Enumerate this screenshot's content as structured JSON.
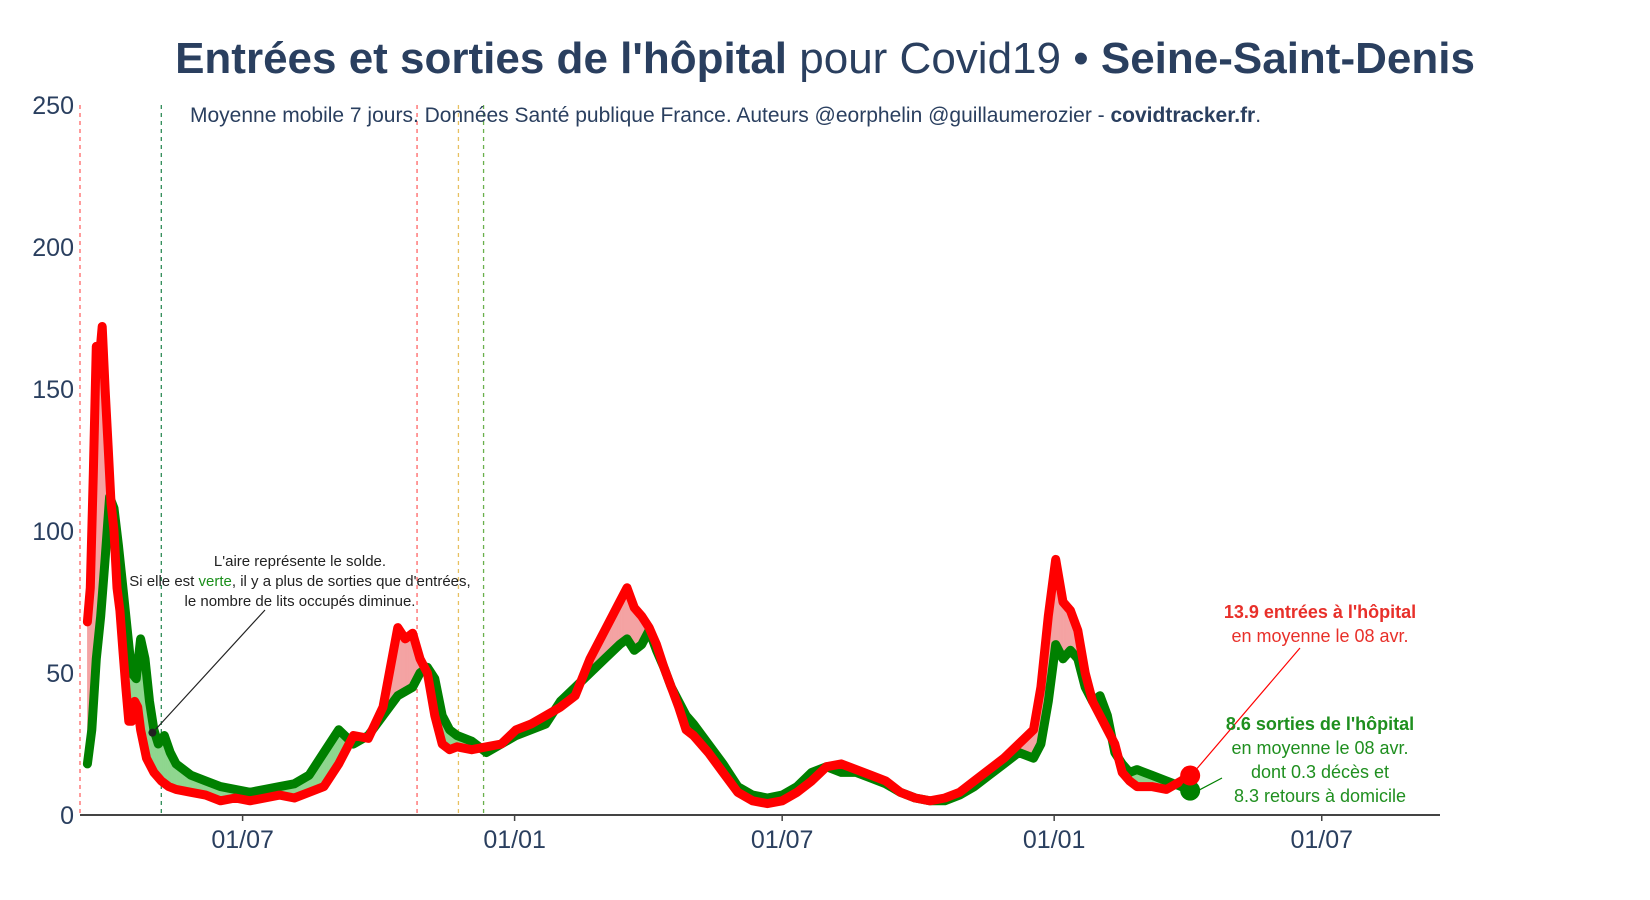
{
  "title": {
    "part1": "Entrées et sorties de l'hôpital",
    "part2": " pour Covid19 • ",
    "part3": "Seine-Saint-Denis"
  },
  "subtitle": {
    "text": "Moyenne mobile 7 jours. Données Santé publique France. Auteurs @eorphelin @guillaumerozier - ",
    "site": "covidtracker.fr",
    "end": "."
  },
  "note": {
    "line1": "L'aire représente le solde.",
    "line2a": "Si elle est ",
    "line2b": "verte",
    "line2c": ", il y a plus de sorties que d'entrées,",
    "line3": "le nombre de lits occupés diminue."
  },
  "annotation_in": {
    "bold": "13.9 entrées à l'hôpital",
    "line2": "en moyenne le 08 avr."
  },
  "annotation_out": {
    "bold": "8.6 sorties de l'hôpital",
    "line2": "en moyenne le 08 avr.",
    "line3": "dont 0.3 décès et",
    "line4": "8.3 retours à domicile"
  },
  "colors": {
    "entries": "#ff0000",
    "exits": "#008000",
    "entries_fill": "#f4a3a3",
    "exits_fill": "#8fd68f",
    "text": "#2a3f5f"
  },
  "chart_data": {
    "type": "line",
    "x_ticks": [
      "01/07",
      "01/01",
      "01/07",
      "01/01",
      "01/07"
    ],
    "x_tick_days": [
      105,
      289,
      470,
      654,
      835
    ],
    "x_range_days": [
      -5,
      915
    ],
    "y_ticks": [
      "0",
      "50",
      "100",
      "150",
      "200",
      "250"
    ],
    "ylim": [
      0,
      250
    ],
    "vlines": [
      {
        "day": -5,
        "color": "#ff6666"
      },
      {
        "day": 50,
        "color": "#2e8b57"
      },
      {
        "day": 223,
        "color": "#ff6666"
      },
      {
        "day": 251,
        "color": "#e8c060"
      },
      {
        "day": 268,
        "color": "#6ab04c"
      }
    ],
    "series": [
      {
        "name": "entrées",
        "points": [
          [
            0,
            68
          ],
          [
            2,
            80
          ],
          [
            4,
            120
          ],
          [
            6,
            165
          ],
          [
            8,
            160
          ],
          [
            10,
            172
          ],
          [
            12,
            150
          ],
          [
            14,
            130
          ],
          [
            16,
            110
          ],
          [
            18,
            100
          ],
          [
            20,
            80
          ],
          [
            22,
            72
          ],
          [
            24,
            58
          ],
          [
            26,
            45
          ],
          [
            28,
            33
          ],
          [
            30,
            33
          ],
          [
            32,
            40
          ],
          [
            34,
            38
          ],
          [
            36,
            30
          ],
          [
            40,
            20
          ],
          [
            45,
            15
          ],
          [
            50,
            12
          ],
          [
            55,
            10
          ],
          [
            60,
            9
          ],
          [
            70,
            8
          ],
          [
            80,
            7
          ],
          [
            90,
            5
          ],
          [
            100,
            6
          ],
          [
            110,
            5
          ],
          [
            120,
            6
          ],
          [
            130,
            7
          ],
          [
            140,
            6
          ],
          [
            150,
            8
          ],
          [
            160,
            10
          ],
          [
            170,
            18
          ],
          [
            180,
            28
          ],
          [
            190,
            27
          ],
          [
            200,
            38
          ],
          [
            205,
            52
          ],
          [
            210,
            66
          ],
          [
            215,
            62
          ],
          [
            220,
            64
          ],
          [
            225,
            55
          ],
          [
            230,
            50
          ],
          [
            235,
            35
          ],
          [
            240,
            25
          ],
          [
            245,
            23
          ],
          [
            250,
            24
          ],
          [
            260,
            23
          ],
          [
            270,
            24
          ],
          [
            280,
            25
          ],
          [
            290,
            30
          ],
          [
            300,
            32
          ],
          [
            310,
            35
          ],
          [
            320,
            38
          ],
          [
            330,
            42
          ],
          [
            340,
            55
          ],
          [
            350,
            65
          ],
          [
            360,
            75
          ],
          [
            365,
            80
          ],
          [
            370,
            73
          ],
          [
            375,
            70
          ],
          [
            380,
            66
          ],
          [
            385,
            60
          ],
          [
            390,
            52
          ],
          [
            395,
            45
          ],
          [
            400,
            38
          ],
          [
            405,
            30
          ],
          [
            410,
            28
          ],
          [
            420,
            22
          ],
          [
            430,
            15
          ],
          [
            440,
            8
          ],
          [
            450,
            5
          ],
          [
            460,
            4
          ],
          [
            470,
            5
          ],
          [
            480,
            8
          ],
          [
            490,
            12
          ],
          [
            500,
            17
          ],
          [
            510,
            18
          ],
          [
            520,
            16
          ],
          [
            530,
            14
          ],
          [
            540,
            12
          ],
          [
            550,
            8
          ],
          [
            560,
            6
          ],
          [
            570,
            5
          ],
          [
            580,
            6
          ],
          [
            590,
            8
          ],
          [
            600,
            12
          ],
          [
            610,
            16
          ],
          [
            620,
            20
          ],
          [
            630,
            25
          ],
          [
            640,
            30
          ],
          [
            645,
            45
          ],
          [
            650,
            70
          ],
          [
            655,
            90
          ],
          [
            660,
            75
          ],
          [
            665,
            72
          ],
          [
            670,
            65
          ],
          [
            675,
            50
          ],
          [
            680,
            40
          ],
          [
            685,
            35
          ],
          [
            690,
            30
          ],
          [
            695,
            25
          ],
          [
            700,
            15
          ],
          [
            705,
            12
          ],
          [
            710,
            10
          ],
          [
            720,
            10
          ],
          [
            730,
            9
          ],
          [
            740,
            12
          ],
          [
            746,
            13.9
          ]
        ]
      },
      {
        "name": "sorties",
        "points": [
          [
            0,
            18
          ],
          [
            3,
            30
          ],
          [
            6,
            55
          ],
          [
            9,
            70
          ],
          [
            12,
            90
          ],
          [
            15,
            112
          ],
          [
            18,
            108
          ],
          [
            21,
            95
          ],
          [
            24,
            80
          ],
          [
            27,
            65
          ],
          [
            30,
            50
          ],
          [
            33,
            48
          ],
          [
            36,
            62
          ],
          [
            39,
            55
          ],
          [
            42,
            40
          ],
          [
            45,
            30
          ],
          [
            48,
            25
          ],
          [
            52,
            28
          ],
          [
            56,
            22
          ],
          [
            60,
            18
          ],
          [
            70,
            14
          ],
          [
            80,
            12
          ],
          [
            90,
            10
          ],
          [
            100,
            9
          ],
          [
            110,
            8
          ],
          [
            120,
            9
          ],
          [
            130,
            10
          ],
          [
            140,
            11
          ],
          [
            150,
            14
          ],
          [
            160,
            22
          ],
          [
            170,
            30
          ],
          [
            180,
            25
          ],
          [
            190,
            28
          ],
          [
            200,
            35
          ],
          [
            210,
            42
          ],
          [
            220,
            45
          ],
          [
            225,
            50
          ],
          [
            230,
            52
          ],
          [
            235,
            48
          ],
          [
            240,
            35
          ],
          [
            245,
            30
          ],
          [
            250,
            28
          ],
          [
            260,
            26
          ],
          [
            270,
            22
          ],
          [
            280,
            25
          ],
          [
            290,
            28
          ],
          [
            300,
            30
          ],
          [
            310,
            32
          ],
          [
            320,
            40
          ],
          [
            330,
            45
          ],
          [
            340,
            50
          ],
          [
            350,
            55
          ],
          [
            360,
            60
          ],
          [
            365,
            62
          ],
          [
            370,
            58
          ],
          [
            375,
            60
          ],
          [
            380,
            65
          ],
          [
            385,
            58
          ],
          [
            390,
            52
          ],
          [
            395,
            45
          ],
          [
            400,
            40
          ],
          [
            405,
            35
          ],
          [
            410,
            32
          ],
          [
            420,
            25
          ],
          [
            430,
            18
          ],
          [
            440,
            10
          ],
          [
            450,
            7
          ],
          [
            460,
            6
          ],
          [
            470,
            7
          ],
          [
            480,
            10
          ],
          [
            490,
            15
          ],
          [
            500,
            17
          ],
          [
            510,
            15
          ],
          [
            520,
            15
          ],
          [
            530,
            13
          ],
          [
            540,
            11
          ],
          [
            550,
            8
          ],
          [
            560,
            6
          ],
          [
            570,
            5
          ],
          [
            580,
            5
          ],
          [
            590,
            7
          ],
          [
            600,
            10
          ],
          [
            610,
            14
          ],
          [
            620,
            18
          ],
          [
            630,
            22
          ],
          [
            640,
            20
          ],
          [
            645,
            25
          ],
          [
            650,
            40
          ],
          [
            655,
            60
          ],
          [
            660,
            55
          ],
          [
            665,
            58
          ],
          [
            670,
            55
          ],
          [
            675,
            45
          ],
          [
            680,
            40
          ],
          [
            685,
            42
          ],
          [
            690,
            35
          ],
          [
            695,
            22
          ],
          [
            700,
            18
          ],
          [
            705,
            15
          ],
          [
            710,
            16
          ],
          [
            720,
            14
          ],
          [
            730,
            12
          ],
          [
            740,
            10
          ],
          [
            746,
            8.6
          ]
        ]
      }
    ]
  }
}
